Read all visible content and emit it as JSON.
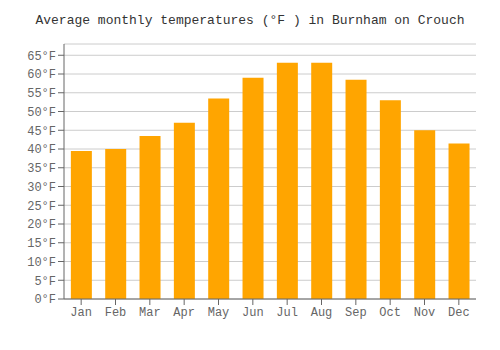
{
  "chart_data": {
    "type": "bar",
    "title": "Average monthly temperatures (°F ) in Burnham on Crouch",
    "categories": [
      "Jan",
      "Feb",
      "Mar",
      "Apr",
      "May",
      "Jun",
      "Jul",
      "Aug",
      "Sep",
      "Oct",
      "Nov",
      "Dec"
    ],
    "values": [
      39.5,
      40.0,
      43.5,
      47.0,
      53.5,
      59.0,
      63.0,
      63.0,
      58.5,
      53.0,
      45.0,
      41.5
    ],
    "color": "#FFA500",
    "ylim": [
      0,
      68
    ],
    "yticks": [
      {
        "value": 0,
        "label": "0°F"
      },
      {
        "value": 5,
        "label": "5°F"
      },
      {
        "value": 10,
        "label": "10°F"
      },
      {
        "value": 15,
        "label": "15°F"
      },
      {
        "value": 20,
        "label": "20°F"
      },
      {
        "value": 25,
        "label": "25°F"
      },
      {
        "value": 30,
        "label": "30°F"
      },
      {
        "value": 35,
        "label": "35°F"
      },
      {
        "value": 40,
        "label": "40°F"
      },
      {
        "value": 45,
        "label": "45°F"
      },
      {
        "value": 50,
        "label": "50°F"
      },
      {
        "value": 55,
        "label": "55°F"
      },
      {
        "value": 60,
        "label": "60°F"
      },
      {
        "value": 65,
        "label": "65°F"
      }
    ],
    "grid": true
  }
}
